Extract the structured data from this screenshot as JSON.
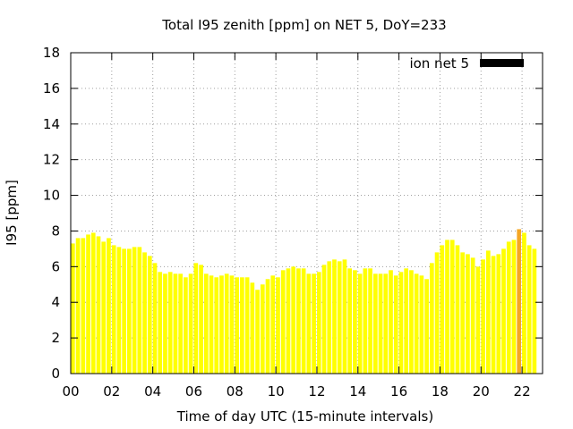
{
  "chart_data": {
    "type": "bar",
    "title": "Total I95 zenith [ppm] on NET 5, DoY=233",
    "xlabel": "Time of day UTC (15-minute intervals)",
    "ylabel": "I95 [ppm]",
    "xlim": [
      0,
      23
    ],
    "ylim": [
      0,
      18
    ],
    "x_ticks": [
      {
        "value": 0,
        "label": "00"
      },
      {
        "value": 2,
        "label": "02"
      },
      {
        "value": 4,
        "label": "04"
      },
      {
        "value": 6,
        "label": "06"
      },
      {
        "value": 8,
        "label": "08"
      },
      {
        "value": 10,
        "label": "10"
      },
      {
        "value": 12,
        "label": "12"
      },
      {
        "value": 14,
        "label": "14"
      },
      {
        "value": 16,
        "label": "16"
      },
      {
        "value": 18,
        "label": "18"
      },
      {
        "value": 20,
        "label": "20"
      },
      {
        "value": 22,
        "label": "22"
      }
    ],
    "y_ticks": [
      0,
      2,
      4,
      6,
      8,
      10,
      12,
      14,
      16,
      18
    ],
    "grid": true,
    "legend": {
      "position": "top-right",
      "label": "ion net 5",
      "color": "#000000"
    },
    "bar_color": "#ffff00",
    "highlight_color": "#f5a623",
    "highlight_index": 87,
    "interval_hours": 0.25,
    "values": [
      7.3,
      7.6,
      7.6,
      7.8,
      7.9,
      7.7,
      7.4,
      7.6,
      7.2,
      7.1,
      7.0,
      7.0,
      7.1,
      7.1,
      6.8,
      6.6,
      6.2,
      5.7,
      5.6,
      5.7,
      5.6,
      5.6,
      5.4,
      5.6,
      6.2,
      6.1,
      5.6,
      5.5,
      5.4,
      5.5,
      5.6,
      5.5,
      5.4,
      5.4,
      5.4,
      5.1,
      4.7,
      5.0,
      5.3,
      5.5,
      5.4,
      5.8,
      5.9,
      6.0,
      5.9,
      5.9,
      5.6,
      5.6,
      5.7,
      6.1,
      6.3,
      6.4,
      6.3,
      6.4,
      5.9,
      5.8,
      5.6,
      5.9,
      5.9,
      5.6,
      5.6,
      5.6,
      5.8,
      5.5,
      5.7,
      5.9,
      5.8,
      5.6,
      5.5,
      5.3,
      6.2,
      6.8,
      7.2,
      7.5,
      7.5,
      7.2,
      6.8,
      6.7,
      6.5,
      6.0,
      6.4,
      6.9,
      6.6,
      6.7,
      7.0,
      7.4,
      7.5,
      8.1,
      7.9,
      7.2,
      7.0
    ]
  }
}
